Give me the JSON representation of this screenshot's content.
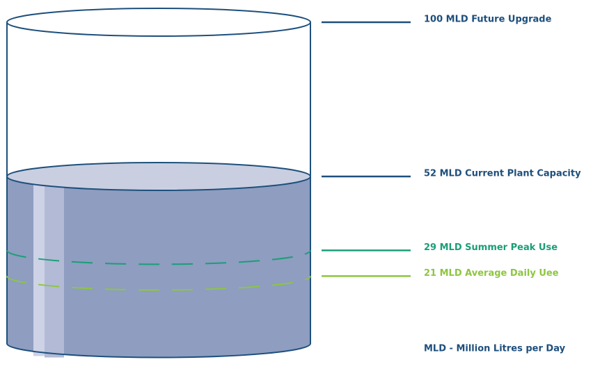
{
  "chart_data": {
    "type": "tank",
    "levels": [
      {
        "value": 100,
        "label": "100 MLD Future Upgrade",
        "color": "#1d4f7c"
      },
      {
        "value": 52,
        "label": "52 MLD Current Plant Capacity",
        "color": "#1d4f7c"
      },
      {
        "value": 29,
        "label": "29 MLD Summer Peak Use",
        "color": "#1a9e77"
      },
      {
        "value": 21,
        "label": "21 MLD Average Daily Uee",
        "color": "#8dc63f"
      }
    ],
    "fill_level": 52,
    "note": "MLD - Million Litres per Day",
    "ylim": [
      0,
      100
    ]
  }
}
